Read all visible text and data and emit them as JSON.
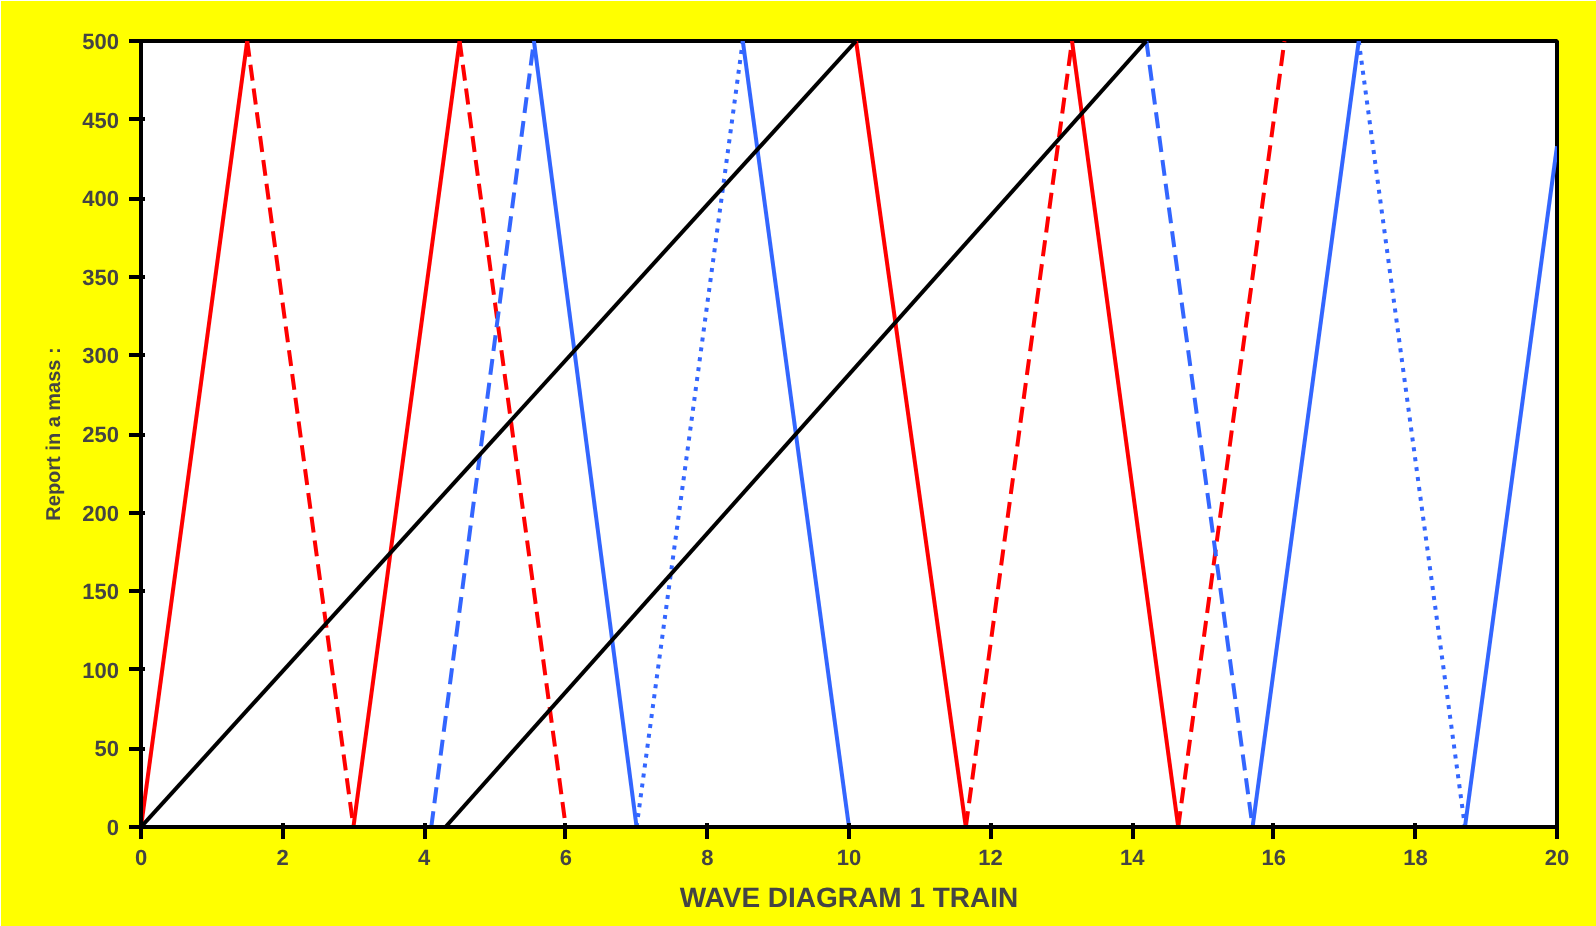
{
  "chart_data": {
    "type": "line",
    "xlabel": "WAVE DIAGRAM 1 TRAIN",
    "ylabel": "Report in a mass :",
    "xlim": [
      0,
      20
    ],
    "ylim": [
      0,
      500
    ],
    "xticks": [
      0,
      2,
      4,
      6,
      8,
      10,
      12,
      14,
      16,
      18,
      20
    ],
    "yticks": [
      0,
      50,
      100,
      150,
      200,
      250,
      300,
      350,
      400,
      450,
      500
    ],
    "grid": false,
    "marker": "none",
    "series": [
      {
        "color": "#ff0000",
        "line_style": "solid",
        "x": [
          0,
          1.5
        ],
        "values": [
          0,
          500
        ]
      },
      {
        "color": "#ff0000",
        "line_style": "dashed",
        "x": [
          1.5,
          3
        ],
        "values": [
          500,
          0
        ]
      },
      {
        "color": "#ff0000",
        "line_style": "solid",
        "x": [
          3,
          4.5
        ],
        "values": [
          0,
          500
        ]
      },
      {
        "color": "#ff0000",
        "line_style": "dashed",
        "x": [
          4.5,
          6
        ],
        "values": [
          500,
          0
        ]
      },
      {
        "color": "#ff0000",
        "line_style": "solid",
        "x": [
          10.1,
          11.65
        ],
        "values": [
          500,
          0
        ]
      },
      {
        "color": "#ff0000",
        "line_style": "dashed",
        "x": [
          11.65,
          13.15
        ],
        "values": [
          0,
          500
        ]
      },
      {
        "color": "#ff0000",
        "line_style": "solid",
        "x": [
          13.15,
          14.65
        ],
        "values": [
          500,
          0
        ]
      },
      {
        "color": "#ff0000",
        "line_style": "dashed",
        "x": [
          14.65,
          16.15
        ],
        "values": [
          0,
          500
        ]
      },
      {
        "color": "#3366ff",
        "line_style": "dashed",
        "x": [
          4.1,
          5.55
        ],
        "values": [
          0,
          500
        ]
      },
      {
        "color": "#3366ff",
        "line_style": "solid",
        "x": [
          5.55,
          7
        ],
        "values": [
          500,
          0
        ]
      },
      {
        "color": "#3366ff",
        "line_style": "dotted",
        "x": [
          7,
          8.5
        ],
        "values": [
          0,
          500
        ]
      },
      {
        "color": "#3366ff",
        "line_style": "solid",
        "x": [
          8.5,
          10
        ],
        "values": [
          500,
          0
        ]
      },
      {
        "color": "#3366ff",
        "line_style": "dashed",
        "x": [
          14.2,
          15.7
        ],
        "values": [
          500,
          0
        ]
      },
      {
        "color": "#3366ff",
        "line_style": "solid",
        "x": [
          15.7,
          17.2
        ],
        "values": [
          0,
          500
        ]
      },
      {
        "color": "#3366ff",
        "line_style": "dotted",
        "x": [
          17.2,
          18.7
        ],
        "values": [
          500,
          0
        ]
      },
      {
        "color": "#3366ff",
        "line_style": "solid",
        "x": [
          18.7,
          20
        ],
        "values": [
          0,
          433
        ]
      },
      {
        "color": "#000000",
        "line_style": "solid",
        "x": [
          0,
          10.1
        ],
        "values": [
          0,
          500
        ]
      },
      {
        "color": "#000000",
        "line_style": "solid",
        "x": [
          4.3,
          14.2
        ],
        "values": [
          0,
          500
        ]
      }
    ]
  }
}
